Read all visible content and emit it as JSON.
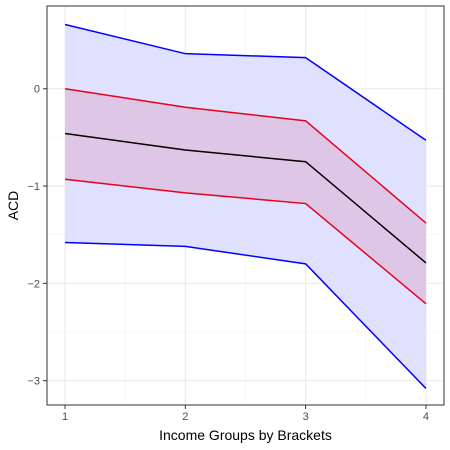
{
  "chart_data": {
    "type": "line",
    "xlabel": "Income Groups by Brackets",
    "ylabel": "ACD",
    "x": [
      1,
      2,
      3,
      4
    ],
    "xlim": [
      0.85,
      4.15
    ],
    "ylim": [
      -3.25,
      0.85
    ],
    "xticks": [
      1,
      2,
      3,
      4
    ],
    "yticks": [
      -3,
      -2,
      -1,
      0
    ],
    "grid": true,
    "legend": "none",
    "bands": [
      {
        "lower": [
          -1.58,
          -1.62,
          -1.8,
          -3.08
        ],
        "upper": [
          0.66,
          0.36,
          0.32,
          -0.53
        ],
        "fill": "#e0e0ff",
        "stroke": "#0000ff"
      },
      {
        "lower": [
          -0.93,
          -1.07,
          -1.18,
          -2.21
        ],
        "upper": [
          0.0,
          -0.19,
          -0.33,
          -1.38
        ],
        "fill": "#dec6e6",
        "stroke": "#e8001c"
      }
    ],
    "series": [
      {
        "values": [
          -0.46,
          -0.63,
          -0.75,
          -1.79
        ],
        "color": "#000000"
      }
    ]
  }
}
